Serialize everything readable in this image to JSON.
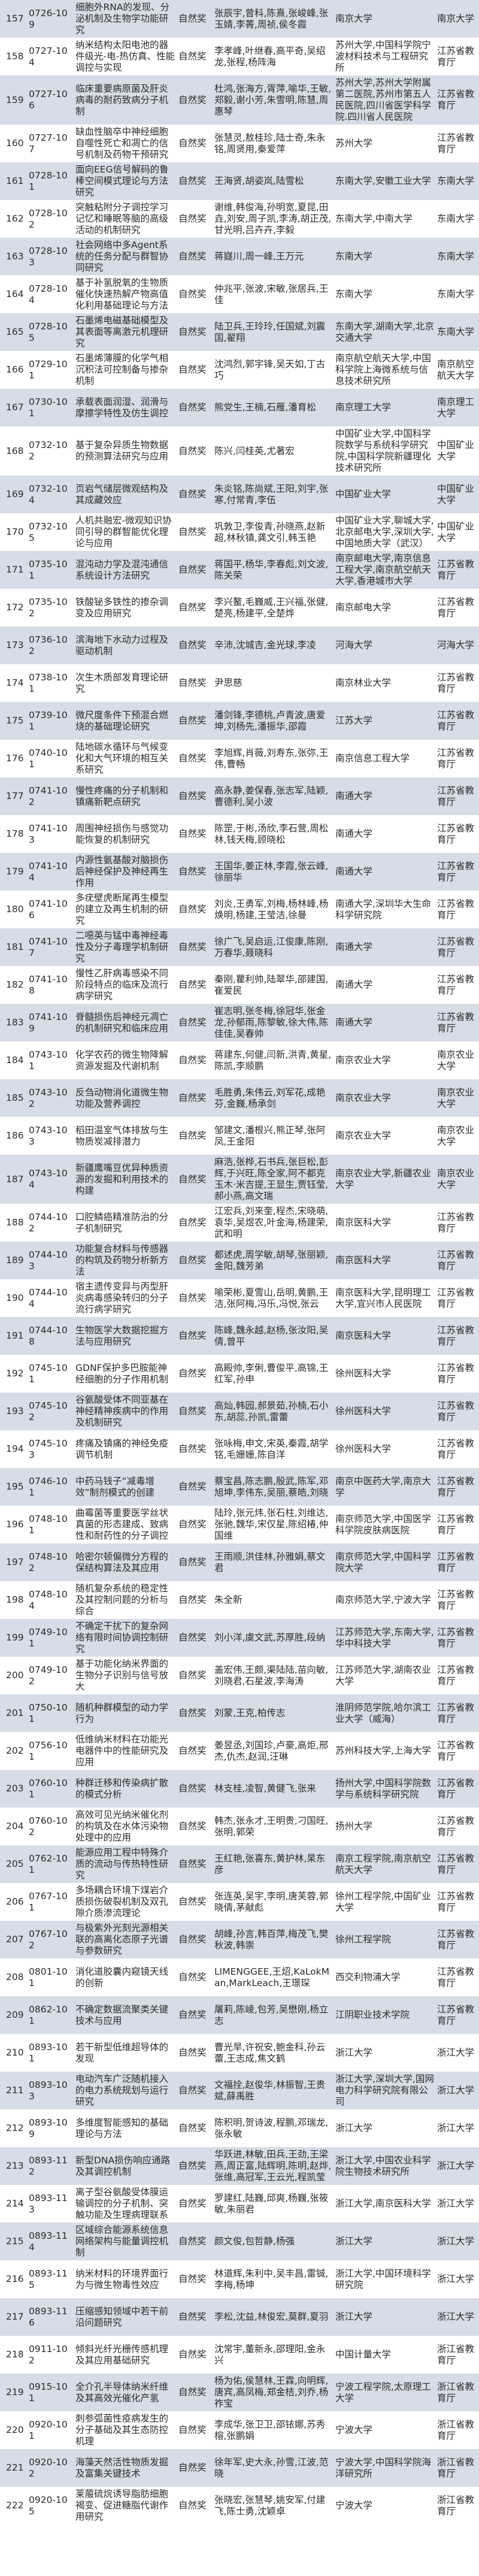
{
  "colors": {
    "shaded_row": "#d6dde6",
    "plain_row": "#ffffff",
    "text": "#2b2b2b"
  },
  "rows": [
    [
      "157",
      "0726-109",
      "细胞外RNA的发现、分泌机制及生物学功能研究",
      "自然奖",
      "张辰宇,曾科,陈熹,张峻峰,张玉婧,李菁,周祯,侯冬霞",
      "南京大学",
      "南京大学"
    ],
    [
      "158",
      "0727-104",
      "纳米结构太阳电池的器件级光-电-热仿真、性能调控与实现",
      "自然奖",
      "李孝峰,叶继春,高平奇,吴绍龙,张程,杨阵海",
      "苏州大学,中国科学院宁波材料技术与工程研究所",
      "江苏省教育厅"
    ],
    [
      "159",
      "0727-106",
      "临床重要病原菌及肝炎病毒的耐药致病分子机制",
      "自然奖",
      "杜鸿,张海方,胥萍,喻华,王敏,郑毅,谢小芳,朱雪明,陈慧,周惠琴",
      "苏州大学,苏州大学附属第二医院,苏州市第五人民医院,四川省医学科学院.四川省人民医院",
      "江苏省教育厅"
    ],
    [
      "160",
      "0727-107",
      "缺血性脑卒中神经细胞自噬性死亡和凋亡的信号机制及药物干预研究",
      "自然奖",
      "张慧灵,敖桂珍,陆士奇,朱永铭,周贤用,秦爱萍",
      "苏州大学",
      "江苏省教育厅"
    ],
    [
      "161",
      "0728-101",
      "面向EEG信号解码的鲁棒空间模式理论与方法研究",
      "自然奖",
      "王海贤,胡姿岚,陆雪松",
      "东南大学,安徽工业大学",
      "东南大学"
    ],
    [
      "162",
      "0728-102",
      "突触粘附分子调控学习记忆和睡眠等脑的高级活动的机制研究",
      "自然奖",
      "谢维,韩俊海,孙明宽,夏昆,田垚,刘安,周子凯,李涛,胡正茂,甘光明,吕卉卉,李毅",
      "东南大学,中南大学",
      "东南大学"
    ],
    [
      "163",
      "0728-103",
      "社会网络中多Agent系统的任务分配与群智协同研究",
      "自然奖",
      "蒋嶷川,周一峰,王万元",
      "东南大学",
      "东南大学"
    ],
    [
      "164",
      "0728-104",
      "基于补氢脱氧的生物质催化快速热解产物高值化利用基础理论与方法",
      "自然奖",
      "仲兆平,张波,宋敏,张居兵,王佳",
      "东南大学",
      "东南大学"
    ],
    [
      "165",
      "0728-105",
      "石墨烯电磁基础模型及其表面等离激元机理研究",
      "自然奖",
      "陆卫兵,王玲玲,任国斌,刘震国,翟翔",
      "东南大学,湖南大学,北京交通大学",
      "东南大学"
    ],
    [
      "166",
      "0729-101",
      "石墨烯薄膜的化学气相沉积法可控制备与掺杂机制",
      "自然奖",
      "沈鸿烈,郭宇锋,吴天如,丁古巧",
      "南京航空航天大学,中国科学院上海微系统与信息技术研究所",
      "南京航空航天大学"
    ],
    [
      "167",
      "0730-101",
      "承载表面润湿、润滑与摩擦学特性及仿生调控",
      "自然奖",
      "熊党生,王楠,石雁,潘育松",
      "南京理工大学",
      "南京理工大学"
    ],
    [
      "168",
      "0732-102",
      "基于复杂异质生物数据的预测算法研究与应用",
      "自然奖",
      "陈兴,闫桂英,尤著宏",
      "中国矿业大学,中国科学院数学与系统科学研究院,中国科学院新疆理化技术研究所",
      "中国矿业大学"
    ],
    [
      "169",
      "0732-104",
      "页岩气储层微观结构及其成藏效应",
      "自然奖",
      "朱炎铭,陈尚斌,王阳,刘宇,张寒,付常青,李伍",
      "中国矿业大学",
      "中国矿业大学"
    ],
    [
      "170",
      "0732-105",
      "人机共融宏-微观知识协同引导的群智能优化理论与应用",
      "自然奖",
      "巩敦卫,李俊青,孙晓燕,赵新超,林秋镇,龚文引,韩玉艳",
      "中国矿业大学,聊城大学,北京邮电大学,深圳大学,中国地质大学（武汉）",
      "中国矿业大学"
    ],
    [
      "171",
      "0735-101",
      "混沌动力学及混沌通信系统设计方法研究",
      "自然奖",
      "蒋国平,杨华,李春彪,刘文波,陈关荣",
      "南京邮电大学,南京信息工程大学,南京航空航天大学,香港城市大学",
      "江苏省教育厅"
    ],
    [
      "172",
      "0735-102",
      "铁酸铋多铁性的掺杂调变及应用研究",
      "自然奖",
      "李兴鳌,毛巍威,王兴福,张健,楚亮,杨建平,全楚烨",
      "南京邮电大学",
      "江苏省教育厅"
    ],
    [
      "173",
      "0736-102",
      "滨海地下水动力过程及驱动机制",
      "自然奖",
      "辛沛,沈城吉,金光球,李凌",
      "河海大学",
      "河海大学"
    ],
    [
      "174",
      "0738-101",
      "次生木质部发育理论研究",
      "自然奖",
      "尹思慈",
      "南京林业大学",
      "江苏省教育厅"
    ],
    [
      "175",
      "0739-101",
      "微尺度条件下预混合燃烧的基础理论研究",
      "自然奖",
      "潘剑锋,李德桃,卢青波,唐爱坤,刘杨先,潘振华,邵霞",
      "江苏大学",
      "江苏省教育厅"
    ],
    [
      "176",
      "0740-101",
      "陆地碳水循环与气候变化和大气环境的相互关系研究",
      "自然奖",
      "李旭辉,肖薇,刘寿东,张弥,王伟,曹畅",
      "南京信息工程大学",
      "江苏省教育厅"
    ],
    [
      "177",
      "0741-102",
      "慢性疼痛的分子机制和镇痛新靶点研究",
      "自然奖",
      "高永静,姜保春,张志军,陆颖,曹德利,吴小波",
      "南通大学",
      "江苏省教育厅"
    ],
    [
      "178",
      "0741-103",
      "周围神经损伤与感觉功能恢复的机制研究",
      "自然奖",
      "陈罡,于彬,汤欣,李石营,周松林,钱天梅,顾晓松",
      "南通大学",
      "江苏省教育厅"
    ],
    [
      "179",
      "0741-104",
      "内源性氨基酸对脑损伤后神经保护及神经再生作用",
      "自然奖",
      "王国华,姜正林,李霞,张云峰,徐丽华",
      "南通大学",
      "江苏省教育厅"
    ],
    [
      "180",
      "0741-106",
      "多疣壁虎断尾再生模型的建立及再生机制的研究",
      "自然奖",
      "刘炎,王勇军,刘梅,杨林峰,杨焕明,杨建,王莹洁,徐曼",
      "南通大学,深圳华大生命科学研究院",
      "江苏省教育厅"
    ],
    [
      "181",
      "0741-107",
      "二噁英与锰中毒神经毒性及分子毒理学机制研究",
      "自然奖",
      "徐广飞,吴启运,江俊康,陈刚,万春华,聂晓科",
      "南通大学",
      "江苏省教育厅"
    ],
    [
      "182",
      "0741-108",
      "慢性乙肝病毒感染不同阶段特点的临床及流行病学研究",
      "自然奖",
      "秦刚,瞿利帅,陆翠华,邵建国,崔爱民",
      "南通大学",
      "江苏省教育厅"
    ],
    [
      "183",
      "0741-109",
      "脊髓损伤后神经元凋亡的机制研究和临床应用",
      "自然奖",
      "崔志明,张冬梅,徐冠华,张金龙,孙郁雨,陈黎敏,徐大伟,陈佳佳,吴春帅",
      "南通大学",
      "江苏省教育厅"
    ],
    [
      "184",
      "0743-101",
      "化学农药的微生物降解资源发掘及代谢机制",
      "自然奖",
      "蒋建东,何健,闫新,洪青,黄星,陈凯,李顺鹏",
      "南京农业大学",
      "南京农业大学"
    ],
    [
      "185",
      "0743-102",
      "反刍动物消化道微生物功能及营养调控",
      "自然奖",
      "毛胜勇,朱伟云,刘军花,成艳芬,金巍,杨承剑",
      "南京农业大学",
      "南京农业大学"
    ],
    [
      "186",
      "0743-103",
      "稻田温室气体排放与生物质炭减排潜力",
      "自然奖",
      "邹建文,潘根兴,熊正琴,张阿凤,王金阳",
      "南京农业大学",
      "南京农业大学"
    ],
    [
      "187",
      "0743-104",
      "新疆鹰嘴豆优异种质资源的发掘和利用技术的构建",
      "自然奖",
      "麻浩,张桦,石书兵,张巨松,彭辉,于兴旺,陈全家,阿不都克玉木·米吉提,王显生,贾钰莹,郝小燕,高文瑞",
      "南京农业大学,新疆农业大学",
      "南京农业大学"
    ],
    [
      "188",
      "0744-102",
      "口腔鳞癌精准防治的分子机制研究",
      "自然奖",
      "江宏兵,刘来奎,程杰,宋晓萌,袁华,吴煜农,叶金海,杨建荣,武和明",
      "南京医科大学",
      "江苏省教育厅"
    ],
    [
      "189",
      "0744-103",
      "功能复合材料与传感器的构筑及药物分析新方法",
      "自然奖",
      "都述虎,周学敏,胡琴,张丽颖,金阳,魏芳弟",
      "南京医科大学",
      "江苏省教育厅"
    ],
    [
      "190",
      "0744-104",
      "宿主遗传变异与丙型肝炎病毒感染转归的分子流行病学研究",
      "自然奖",
      "喻荣彬,夏雪山,岳明,黄鹏,王洁,张阿梅,冯乐,冯悦,张云",
      "南京医科大学,昆明理工大学,宜兴市人民医院",
      "江苏省教育厅"
    ],
    [
      "191",
      "0744-108",
      "生物医学大数据挖掘方法与应用研究",
      "自然奖",
      "陈峰,魏永越,赵杨,张汝阳,吴倩,曾平",
      "南京医科大学",
      "江苏省教育厅"
    ],
    [
      "192",
      "0745-101",
      "GDNF保护多巴胺能神经细胞的分子作用机制",
      "自然奖",
      "高殿帅,李俐,曹俊平,高锦,王红军,孙申",
      "徐州医科大学",
      "江苏省教育厅"
    ],
    [
      "193",
      "0745-102",
      "谷氨酸受体不同亚基在神经精神疾病中的作用及机制研究",
      "自然奖",
      "高灿,韩园,郝景茹,孙楠,石小东,胡蕊,孙凯,雷蕾",
      "徐州医科大学",
      "江苏省教育厅"
    ],
    [
      "194",
      "0745-103",
      "疼痛及镇痛的神经免疫调节机制",
      "自然奖",
      "张咏梅,申文,宋英,秦霞,胡学铭,毛姗姗,陈自洋",
      "徐州医科大学",
      "江苏省教育厅"
    ],
    [
      "195",
      "0746-101",
      "中药马钱子“减毒增效”制剂模式的创建",
      "自然奖",
      "蔡宝昌,陈志鹏,殷武,陈军,邓旭坤,李伟东,吴丽,蔡皓,刘晓",
      "南京中医药大学,南京大学",
      "江苏省教育厅"
    ],
    [
      "196",
      "0748-101",
      "曲霉菌等重要医学丝状真菌的形态建成、致病性和耐药性的分子调控",
      "自然奖",
      "陆玲,张元炜,张石柱,刘维达,张驰,魏华,宋仅星,陈绍椿,仲国维",
      "南京师范大学,中国医学科学院皮肤病医院",
      "江苏省教育厅"
    ],
    [
      "197",
      "0748-102",
      "哈密尔顿偏微分方程的保结构算法及其应用",
      "自然奖",
      "王雨顺,洪佳林,孙雅娟,蔡文君",
      "南京师范大学,中国科学院大学",
      "江苏省教育厅"
    ],
    [
      "198",
      "0748-104",
      "随机复杂系统的稳定性及其控制问题的分析与综合",
      "自然奖",
      "朱全新",
      "南京师范大学,宁波大学",
      "江苏省教育厅"
    ],
    [
      "199",
      "0749-101",
      "不确定干扰下的复杂网络有限时间协调控制研究",
      "自然奖",
      "刘小洋,虞文武,苏厚胜,段纳",
      "江苏师范大学,东南大学,华中科技大学",
      "江苏省教育厅"
    ],
    [
      "200",
      "0749-102",
      "基于功能化纳米界面的生物分子识别与信号放大",
      "自然奖",
      "盖宏伟,王颇,渠陆陆,苗向敏,刘晓君,石星波,李海涛",
      "江苏师范大学,湖南农业大学",
      "江苏省教育厅"
    ],
    [
      "201",
      "0750-101",
      "随机种群模型的动力学行为",
      "自然奖",
      "刘蒙,王克,柏传志",
      "淮阴师范学院,哈尔滨工业大学（威海）",
      "江苏省教育厅"
    ],
    [
      "202",
      "0756-101",
      "低维纳米材料在功能光电器件中的性能研究及应用",
      "自然奖",
      "姜昱丞,刘国珍,卢豪,高炬,邢杰,仇杰,赵润,汪琳",
      "苏州科技大学,上海大学",
      "江苏省教育厅"
    ],
    [
      "203",
      "0760-101",
      "种群迁移和传染病扩散的模式分析",
      "自然奖",
      "林支桂,凌智,黄健飞,张来",
      "扬州大学,中国科学院数学与系统科学研究院",
      "江苏省教育厅"
    ],
    [
      "204",
      "0760-102",
      "高效可见光纳米催化剂的构筑及在水体污染物处理中的应用",
      "自然奖",
      "韩杰,张永才,王明贵,刁国旺,张明,郭荣",
      "扬州大学",
      "江苏省教育厅"
    ],
    [
      "205",
      "0762-101",
      "能源应用工程中特殊介质的流动与传热特性研究",
      "自然奖",
      "王红艳,张喜东,黄护林,杲东彦",
      "南京工程学院,南京航空航天大学",
      "江苏省教育厅"
    ],
    [
      "206",
      "0767-101",
      "多场耦合环境下煤岩介质损伤破裂机制及双孔隙介质渗流理论",
      "自然奖",
      "张连英,吴宇,李明,唐芙蓉,郭晓倩,茅献彪",
      "徐州工程学院,中国矿业大学",
      "江苏省教育厅"
    ],
    [
      "207",
      "0767-102",
      "与极紫外光刻光源相关联的高离化态原子光谱与参数研究",
      "自然奖",
      "胡峰,孙言,韩百萍,梅茂飞,樊秋波,韩崇",
      "徐州工程学院",
      "江苏省教育厅"
    ],
    [
      "208",
      "0801-101",
      "消化道胶囊内窥镜天线的创新",
      "自然奖",
      "LIMENGGEE,王炤,KaLokMan,MarkLeach,王璟琛",
      "西交利物浦大学",
      "江苏省教育厅"
    ],
    [
      "209",
      "0862-101",
      "不确定数据流聚类关键技术与应用",
      "自然奖",
      "屠莉,陈崚,包芳,吴懋刚,杨立志",
      "江阴职业技术学院",
      "江苏省教育厅"
    ],
    [
      "210",
      "0893-101",
      "若干新型低维超导体的发现",
      "自然奖",
      "曹光旱,许祝安,鲍金科,孙云蕾,王志成,焦文鹤",
      "浙江大学",
      "浙江大学"
    ],
    [
      "211",
      "0893-103",
      "电动汽车广泛随机接入的电力系统规划与运行研究",
      "自然奖",
      "文福拴,赵俊华,林振智,王贵斌,薛禹胜",
      "浙江大学,深圳大学,国网电力科学研究院有限公司",
      "浙江大学"
    ],
    [
      "212",
      "0893-109",
      "多维度智能感知的基础理论与方法",
      "自然奖",
      "陈积明,贺诗波,程鹏,邓瑞龙,张永敏",
      "浙江大学",
      "浙江大学"
    ],
    [
      "213",
      "0893-112",
      "新型DNA损伤响应通路及其调控机制",
      "自然奖",
      "华跃进,林敏,田兵,王劲,王梁燕,周正富,陆辉明,陈明,赵烨,张维,高冠军,王云光,程凯莹",
      "浙江大学,中国农业科学院生物技术研究所",
      "浙江大学"
    ],
    [
      "214",
      "0893-113",
      "离子型谷氨酸受体膜运输调控的分子机制、突触功能及生理病理联系",
      "自然奖",
      "罗建红,陆巍,邱爽,杨巍,张筱敏,朱丽君",
      "浙江大学,南京医科大学",
      "浙江大学"
    ],
    [
      "215",
      "0893-114",
      "区域综合能源系统信息网络架构与能量调控机制",
      "自然奖",
      "颜文俊,包哲静,杨强",
      "浙江大学",
      "浙江大学"
    ],
    [
      "216",
      "0893-115",
      "纳米材料的环境界面行为与微生物毒性效应",
      "自然奖",
      "林道辉,朱利中,吴丰昌,雷铖,李梅,杨坤",
      "浙江大学,中国环境科学研究院",
      "浙江大学"
    ],
    [
      "217",
      "0893-116",
      "压缩感知领域中若干前沿问题研究",
      "自然奖",
      "李松,沈益,林俊宏,莫群,夏羽",
      "浙江大学",
      "浙江大学"
    ],
    [
      "218",
      "0911-102",
      "倾斜光纤光栅传感机理及其应用基础研究",
      "自然奖",
      "沈常宇,董新永,邵理阳,金永兴",
      "中国计量大学",
      "浙江省教育厅"
    ],
    [
      "219",
      "0915-101",
      "全介孔半导体纳米纤维及其高效光催化产氢",
      "自然奖",
      "杨为佑,侯慧林,王霖,向明辉,唐宾,高凤梅,郑金桔,刘乔,杨祚宝",
      "宁波工程学院,太原理工大学",
      "浙江省教育厅"
    ],
    [
      "220",
      "0920-101",
      "刺参弧菌性疫病发生的分子基础及其生态防控机理",
      "自然奖",
      "李成华,张卫卫,邵铱娜,苏秀榕,张鹏娟",
      "宁波大学",
      "浙江省教育厅"
    ],
    [
      "221",
      "0920-102",
      "海藻天然活性物质发掘及富集关键技术",
      "自然奖",
      "徐年军,史大永,孙雪,江波,范晓",
      "宁波大学,中国科学院海洋研究所",
      "浙江省教育厅"
    ],
    [
      "222",
      "0920-105",
      "莱菔硫烷诱导脂肪细胞褐变、促进糖脂代谢作用研究",
      "自然奖",
      "张晓宏,张慧琴,姚安军,付建飞,陈士勇,沈颖卓",
      "宁波大学",
      "浙江省教育厅"
    ]
  ]
}
